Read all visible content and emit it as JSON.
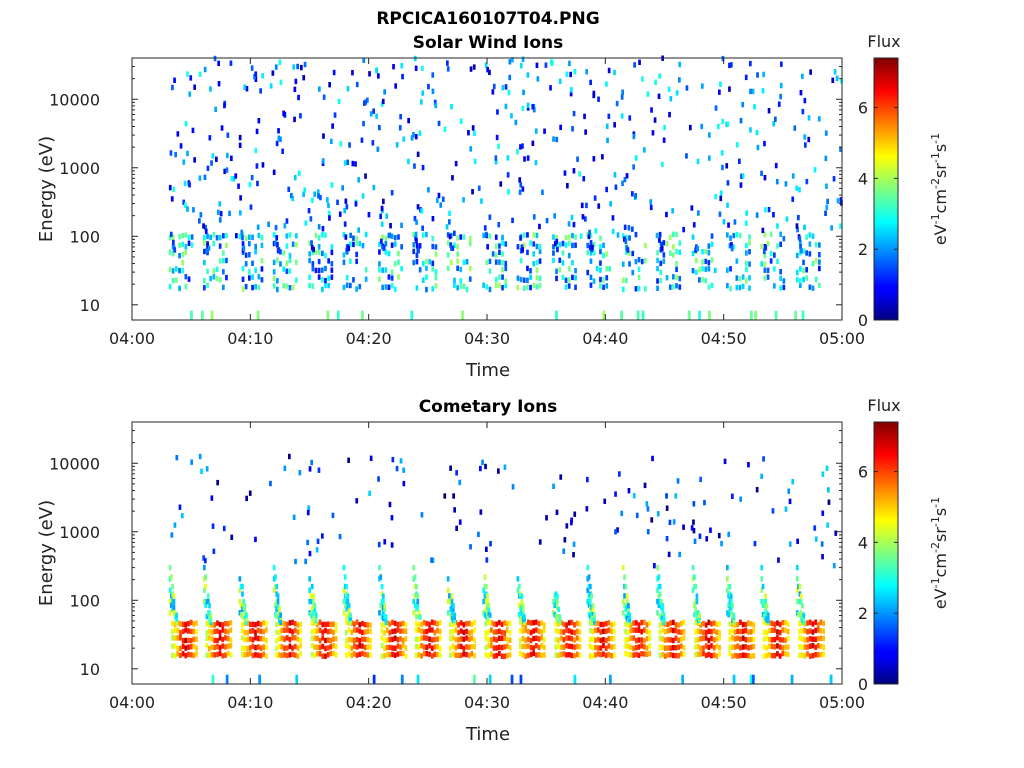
{
  "figure_title": "RPCICA160107T04.PNG",
  "chart_data": [
    {
      "type": "heatmap",
      "title": "Solar Wind Ions",
      "xlabel": "Time",
      "ylabel": "Energy (eV)",
      "x_ticks": [
        "04:00",
        "04:10",
        "04:20",
        "04:30",
        "04:40",
        "04:50",
        "05:00"
      ],
      "x_range": [
        "04:00",
        "05:00"
      ],
      "x_data_range": [
        "04:03",
        "05:00"
      ],
      "y_scale": "log",
      "y_ticks": [
        "10",
        "100",
        "1000",
        "10000"
      ],
      "y_range": [
        6,
        40000
      ],
      "colorbar": {
        "title": "Flux",
        "label": "eV-1cm-2sr-1s-1",
        "range": [
          0,
          7.4
        ],
        "ticks": [
          "0",
          "2",
          "4",
          "6"
        ],
        "colormap": "jet"
      },
      "scan_period_min": 2.94,
      "scan_starts_min": [
        3.1,
        6.0,
        9.0,
        11.9,
        14.9,
        17.8,
        20.8,
        23.7,
        26.6,
        29.6,
        32.5,
        35.5,
        38.4,
        41.4,
        44.3,
        47.3,
        50.2,
        53.1,
        56.1
      ],
      "features": [
        {
          "energy_range": [
            20,
            100
          ],
          "flux": [
            1,
            4
          ],
          "note": "repeating low-energy flux per energy sweep"
        },
        {
          "energy_range": [
            100,
            40000
          ],
          "flux": [
            0.5,
            3
          ],
          "note": "sparse scattered counts"
        },
        {
          "energy_range": [
            6,
            10
          ],
          "flux": [
            3,
            4
          ],
          "note": "occasional isolated vertical streaks"
        }
      ]
    },
    {
      "type": "heatmap",
      "title": "Cometary Ions",
      "xlabel": "Time",
      "ylabel": "Energy (eV)",
      "x_ticks": [
        "04:00",
        "04:10",
        "04:20",
        "04:30",
        "04:40",
        "04:50",
        "05:00"
      ],
      "x_range": [
        "04:00",
        "05:00"
      ],
      "x_data_range": [
        "04:03",
        "05:00"
      ],
      "y_scale": "log",
      "y_ticks": [
        "10",
        "100",
        "1000",
        "10000"
      ],
      "y_range": [
        6,
        40000
      ],
      "colorbar": {
        "title": "Flux",
        "label": "eV-1cm-2sr-1s-1",
        "range": [
          0,
          7.4
        ],
        "ticks": [
          "0",
          "2",
          "4",
          "6"
        ],
        "colormap": "jet"
      },
      "scan_period_min": 2.94,
      "scan_starts_min": [
        3.1,
        6.0,
        9.0,
        11.9,
        14.9,
        17.8,
        20.8,
        23.7,
        26.6,
        29.6,
        32.5,
        35.5,
        38.4,
        41.4,
        44.3,
        47.3,
        50.2,
        53.1,
        56.1
      ],
      "features": [
        {
          "energy_range": [
            15,
            45
          ],
          "flux": [
            5,
            6.3
          ],
          "note": "intense core band in every energy sweep"
        },
        {
          "energy_range": [
            45,
            300
          ],
          "flux": [
            2,
            4.5
          ],
          "note": "decaying tails rising toward higher energy"
        },
        {
          "energy_range": [
            300,
            10000
          ],
          "flux": [
            0,
            2.5
          ],
          "note": "sparse scattered counts"
        },
        {
          "energy_range": [
            6,
            10
          ],
          "flux": [
            1,
            3.5
          ],
          "note": "occasional isolated vertical streaks"
        }
      ]
    }
  ]
}
